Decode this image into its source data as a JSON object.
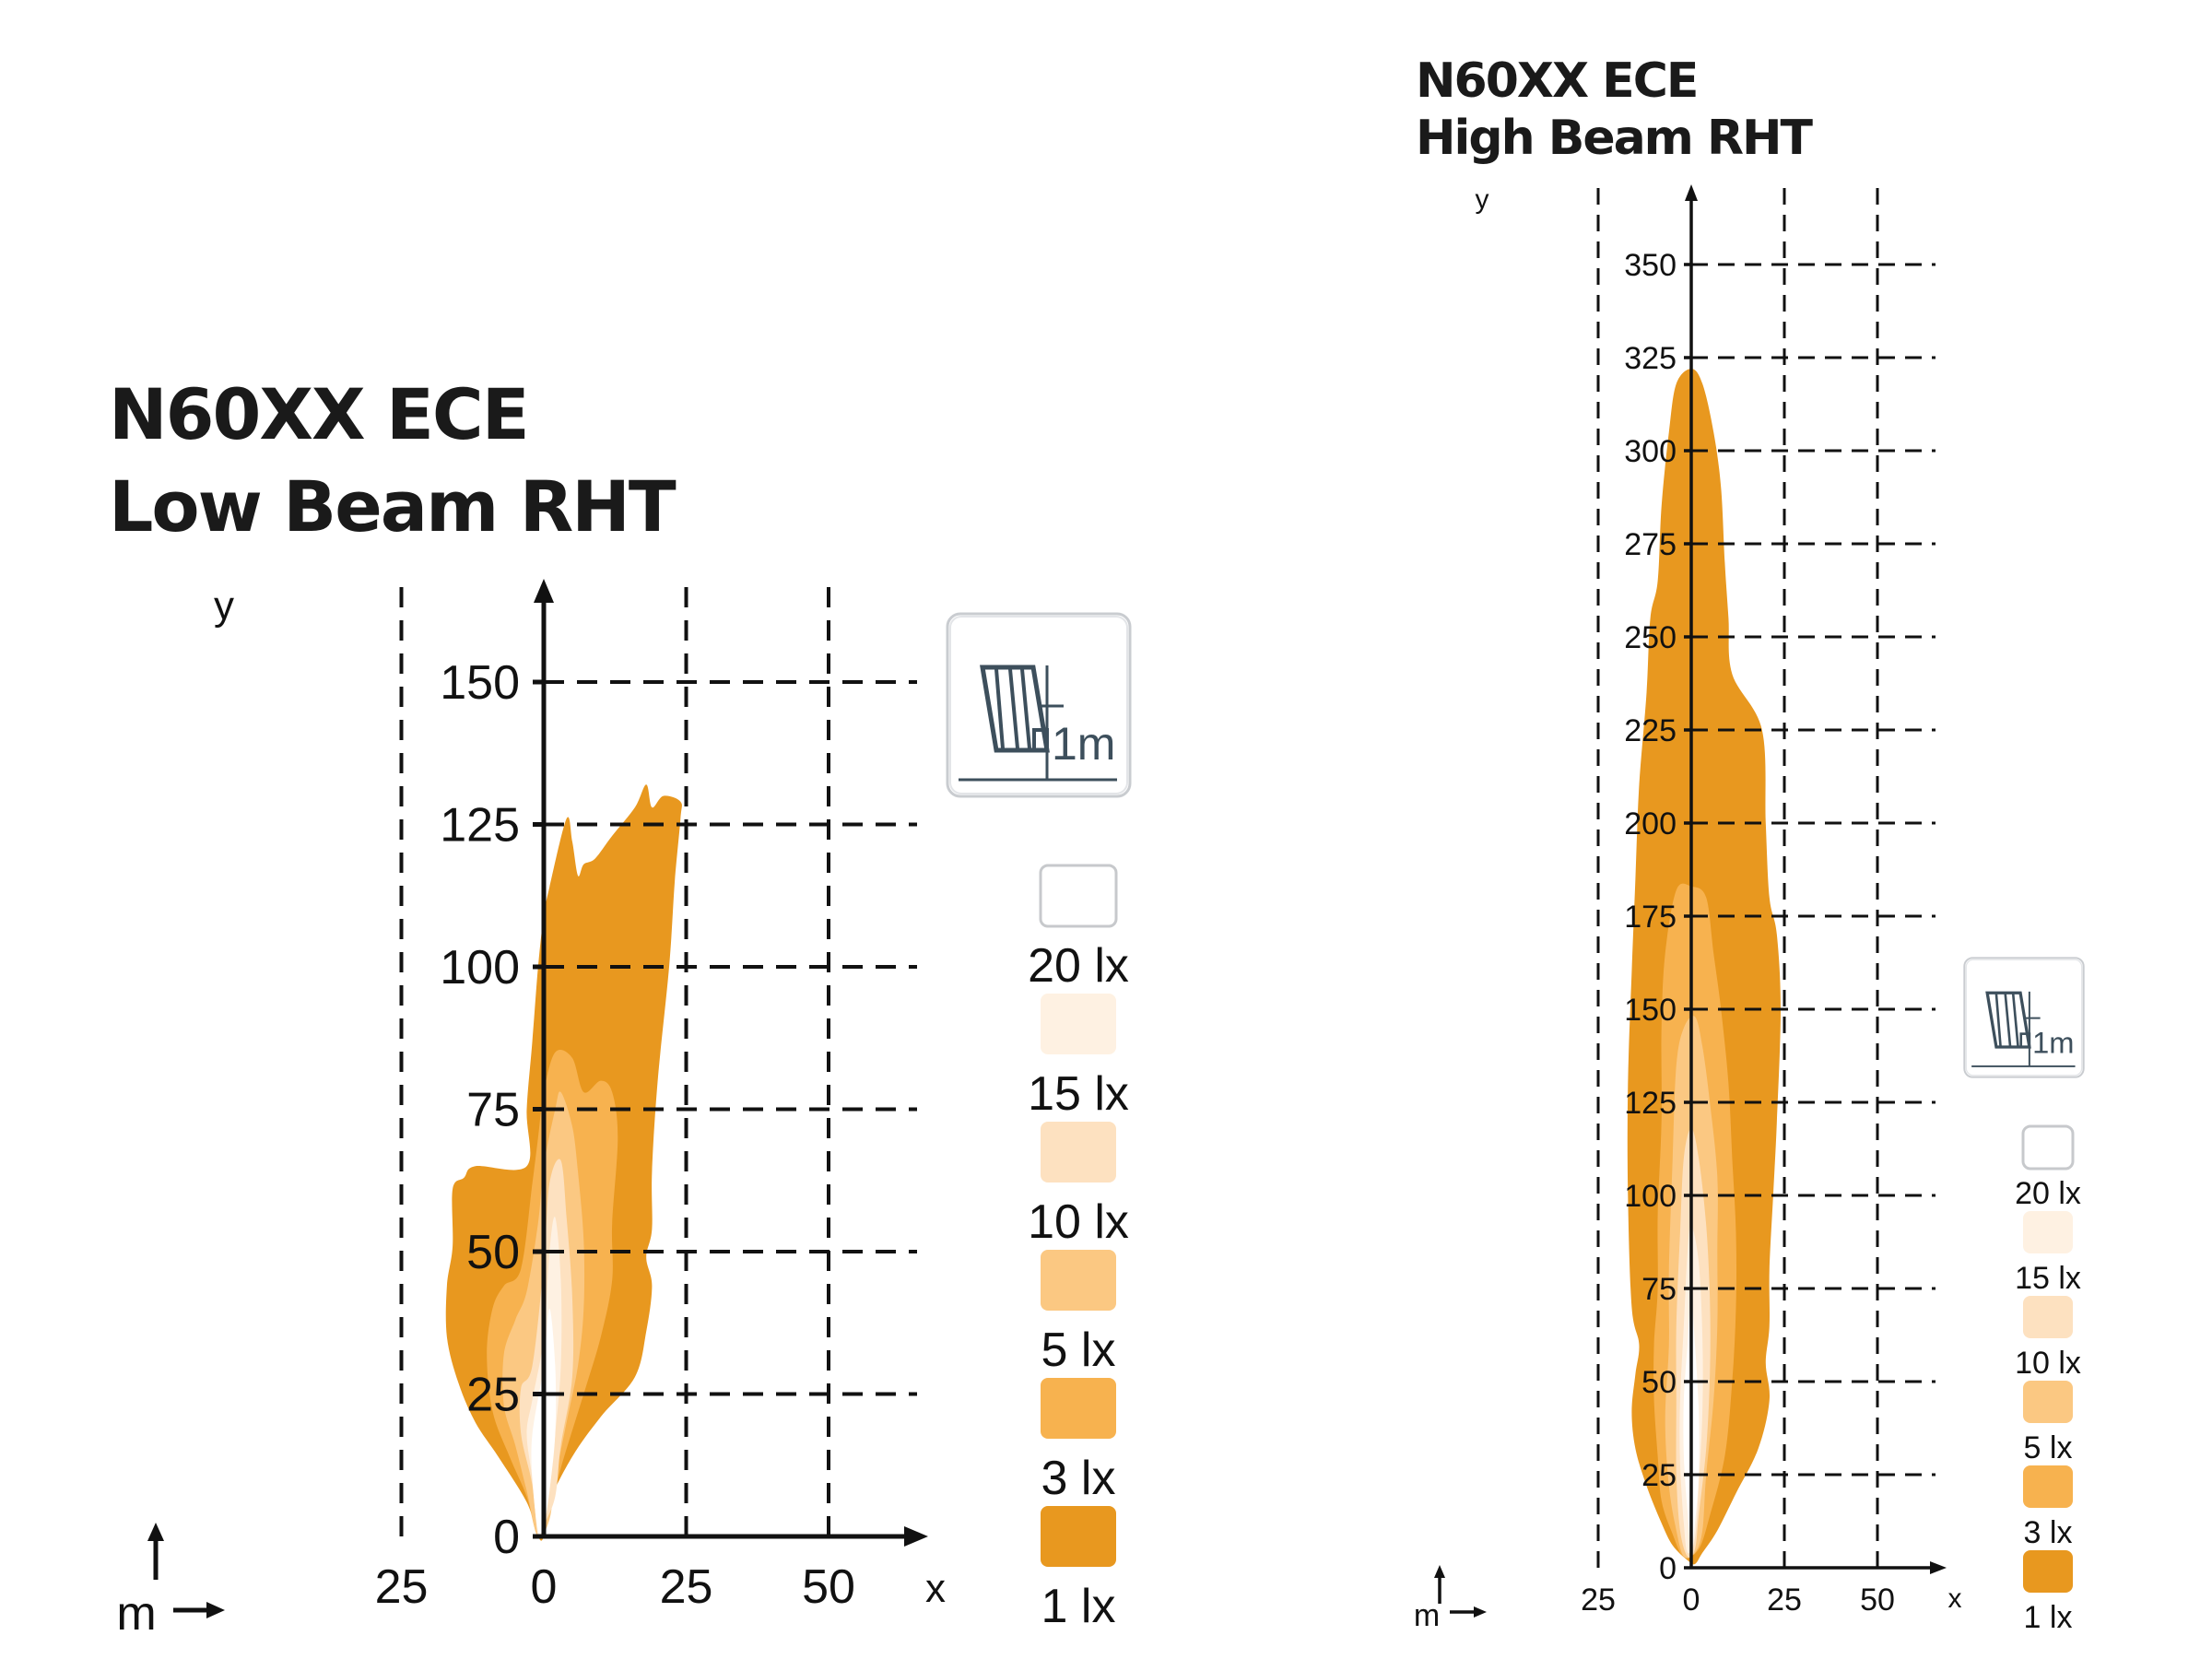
{
  "colors": {
    "lx1": "#e8981f",
    "lx3": "#f7b24f",
    "lx5": "#fbc882",
    "lx10": "#fde1c0",
    "lx15": "#fef1e2",
    "lx20": "#ffffff",
    "grid": "#111111",
    "icon": "#3d4f5c"
  },
  "chart_data": [
    {
      "type": "area",
      "title_line1": "N60XX ECE",
      "title_line2": "Low Beam RHT",
      "xlabel": "x",
      "ylabel": "y",
      "unit_label": "m",
      "mount_height_label": "1m",
      "x_ticks": [
        "25",
        "0",
        "25",
        "50"
      ],
      "y_ticks": [
        "0",
        "25",
        "50",
        "75",
        "100",
        "125",
        "150"
      ],
      "xlim": [
        -50,
        65
      ],
      "ylim": [
        0,
        160
      ],
      "grid": true,
      "legend_position": "right",
      "legend": [
        "20 lx",
        "15 lx",
        "10 lx",
        "5 lx",
        "3 lx",
        "1 lx"
      ],
      "isolux_contours": [
        {
          "level": "1 lx",
          "points": [
            [
              -1,
              0
            ],
            [
              -3,
              6
            ],
            [
              -8,
              14
            ],
            [
              -12,
              20
            ],
            [
              -15,
              27
            ],
            [
              -17,
              35
            ],
            [
              -17,
              44
            ],
            [
              -16,
              51
            ],
            [
              -16,
              61
            ],
            [
              -14,
              63
            ],
            [
              -12,
              65
            ],
            [
              -3,
              65
            ],
            [
              -3,
              75
            ],
            [
              -2,
              87
            ],
            [
              -1,
              100
            ],
            [
              0,
              109
            ],
            [
              1,
              114
            ],
            [
              4,
              126
            ],
            [
              5,
              122
            ],
            [
              6,
              116
            ],
            [
              7,
              118
            ],
            [
              9,
              119
            ],
            [
              12,
              123
            ],
            [
              16,
              128
            ],
            [
              18,
              132
            ],
            [
              19,
              128
            ],
            [
              21,
              130
            ],
            [
              24,
              129
            ],
            [
              24,
              126
            ],
            [
              23,
              115
            ],
            [
              22,
              100
            ],
            [
              20,
              80
            ],
            [
              19,
              64
            ],
            [
              19,
              54
            ],
            [
              18,
              49
            ],
            [
              19,
              44
            ],
            [
              18,
              36
            ],
            [
              16,
              28
            ],
            [
              10,
              21
            ],
            [
              5,
              14
            ],
            [
              1,
              6
            ],
            [
              0,
              0
            ]
          ]
        },
        {
          "level": "3 lx",
          "points": [
            [
              -1,
              0
            ],
            [
              -3,
              7
            ],
            [
              -6,
              14
            ],
            [
              -9,
              22
            ],
            [
              -10,
              32
            ],
            [
              -9,
              40
            ],
            [
              -7,
              44
            ],
            [
              -4,
              47
            ],
            [
              -2,
              62
            ],
            [
              -1,
              70
            ],
            [
              0,
              78
            ],
            [
              2,
              85
            ],
            [
              5,
              84
            ],
            [
              7,
              78
            ],
            [
              10,
              80
            ],
            [
              12,
              78
            ],
            [
              13,
              70
            ],
            [
              12,
              55
            ],
            [
              12,
              45
            ],
            [
              10,
              35
            ],
            [
              7,
              25
            ],
            [
              3,
              12
            ],
            [
              1,
              4
            ]
          ]
        },
        {
          "level": "5 lx",
          "points": [
            [
              -1,
              0
            ],
            [
              -3,
              8
            ],
            [
              -5,
              16
            ],
            [
              -7,
              23
            ],
            [
              -7,
              32
            ],
            [
              -5,
              38
            ],
            [
              -3,
              43
            ],
            [
              -1,
              55
            ],
            [
              0,
              65
            ],
            [
              2,
              75
            ],
            [
              3,
              78
            ],
            [
              5,
              72
            ],
            [
              6,
              64
            ],
            [
              7,
              52
            ],
            [
              7,
              40
            ],
            [
              6,
              30
            ],
            [
              4,
              20
            ],
            [
              2,
              10
            ],
            [
              1,
              3
            ]
          ]
        },
        {
          "level": "10 lx",
          "points": [
            [
              -1,
              0
            ],
            [
              -2,
              9
            ],
            [
              -4,
              18
            ],
            [
              -4,
              26
            ],
            [
              -2,
              30
            ],
            [
              0,
              48
            ],
            [
              1,
              62
            ],
            [
              3,
              66
            ],
            [
              4,
              56
            ],
            [
              5,
              42
            ],
            [
              5,
              28
            ],
            [
              3,
              16
            ],
            [
              2,
              7
            ],
            [
              0,
              2
            ]
          ]
        },
        {
          "level": "15 lx",
          "points": [
            [
              -1,
              0
            ],
            [
              -2,
              10
            ],
            [
              -3,
              18
            ],
            [
              -2,
              24
            ],
            [
              0,
              35
            ],
            [
              1,
              50
            ],
            [
              2,
              56
            ],
            [
              3,
              45
            ],
            [
              3,
              30
            ],
            [
              2,
              18
            ],
            [
              1,
              8
            ],
            [
              0,
              2
            ]
          ]
        },
        {
          "level": "20 lx",
          "points": [
            [
              -1,
              1
            ],
            [
              -2,
              10
            ],
            [
              -2,
              18
            ],
            [
              0,
              30
            ],
            [
              1,
              40
            ],
            [
              2,
              30
            ],
            [
              2,
              18
            ],
            [
              1,
              8
            ],
            [
              0,
              2
            ]
          ]
        }
      ]
    },
    {
      "type": "area",
      "title_line1": "N60XX ECE",
      "title_line2": "High Beam RHT",
      "xlabel": "x",
      "ylabel": "y",
      "unit_label": "m",
      "mount_height_label": "1m",
      "x_ticks": [
        "25",
        "0",
        "25",
        "50"
      ],
      "y_ticks": [
        "0",
        "25",
        "50",
        "75",
        "100",
        "125",
        "150",
        "175",
        "200",
        "225",
        "250",
        "275",
        "300",
        "325",
        "350"
      ],
      "xlim": [
        -50,
        65
      ],
      "ylim": [
        0,
        370
      ],
      "grid": true,
      "legend_position": "right",
      "legend": [
        "20 lx",
        "15 lx",
        "10 lx",
        "5 lx",
        "3 lx",
        "1 lx"
      ],
      "isolux_contours": [
        {
          "level": "1 lx",
          "points": [
            [
              -1,
              2
            ],
            [
              -5,
              6
            ],
            [
              -8,
              12
            ],
            [
              -12,
              22
            ],
            [
              -15,
              32
            ],
            [
              -16,
              42
            ],
            [
              -15,
              52
            ],
            [
              -14,
              60
            ],
            [
              -16,
              70
            ],
            [
              -17,
              100
            ],
            [
              -17,
              130
            ],
            [
              -16,
              160
            ],
            [
              -15,
              185
            ],
            [
              -14,
              210
            ],
            [
              -12,
              235
            ],
            [
              -11,
              255
            ],
            [
              -9,
              265
            ],
            [
              -8,
              285
            ],
            [
              -6,
              305
            ],
            [
              -4,
              318
            ],
            [
              0,
              322
            ],
            [
              3,
              318
            ],
            [
              6,
              305
            ],
            [
              8,
              290
            ],
            [
              9,
              270
            ],
            [
              10,
              255
            ],
            [
              11,
              240
            ],
            [
              19,
              225
            ],
            [
              20,
              200
            ],
            [
              21,
              180
            ],
            [
              23,
              170
            ],
            [
              24,
              150
            ],
            [
              23,
              120
            ],
            [
              22,
              100
            ],
            [
              21,
              80
            ],
            [
              21,
              65
            ],
            [
              20,
              55
            ],
            [
              21,
              45
            ],
            [
              18,
              32
            ],
            [
              12,
              20
            ],
            [
              7,
              10
            ],
            [
              3,
              4
            ],
            [
              1,
              1
            ]
          ]
        },
        {
          "level": "3 lx",
          "points": [
            [
              -2,
              3
            ],
            [
              -5,
              9
            ],
            [
              -8,
              18
            ],
            [
              -9,
              30
            ],
            [
              -10,
              45
            ],
            [
              -10,
              60
            ],
            [
              -9,
              75
            ],
            [
              -9,
              95
            ],
            [
              -8,
              120
            ],
            [
              -8,
              145
            ],
            [
              -7,
              165
            ],
            [
              -4,
              182
            ],
            [
              0,
              183
            ],
            [
              4,
              180
            ],
            [
              6,
              165
            ],
            [
              8,
              150
            ],
            [
              10,
              130
            ],
            [
              11,
              110
            ],
            [
              12,
              90
            ],
            [
              12,
              70
            ],
            [
              11,
              50
            ],
            [
              9,
              30
            ],
            [
              5,
              14
            ],
            [
              2,
              5
            ]
          ]
        },
        {
          "level": "5 lx",
          "points": [
            [
              -2,
              3
            ],
            [
              -4,
              10
            ],
            [
              -6,
              22
            ],
            [
              -7,
              40
            ],
            [
              -6,
              60
            ],
            [
              -6,
              80
            ],
            [
              -5,
              110
            ],
            [
              -4,
              135
            ],
            [
              -2,
              145
            ],
            [
              1,
              148
            ],
            [
              3,
              140
            ],
            [
              5,
              125
            ],
            [
              7,
              105
            ],
            [
              7,
              85
            ],
            [
              7,
              65
            ],
            [
              6,
              45
            ],
            [
              4,
              25
            ],
            [
              3,
              10
            ],
            [
              1,
              4
            ]
          ]
        },
        {
          "level": "10 lx",
          "points": [
            [
              -1,
              3
            ],
            [
              -3,
              10
            ],
            [
              -4,
              25
            ],
            [
              -4,
              45
            ],
            [
              -4,
              65
            ],
            [
              -3,
              90
            ],
            [
              -2,
              110
            ],
            [
              0,
              118
            ],
            [
              2,
              110
            ],
            [
              4,
              92
            ],
            [
              5,
              72
            ],
            [
              5,
              52
            ],
            [
              4,
              32
            ],
            [
              2,
              14
            ],
            [
              1,
              5
            ]
          ]
        },
        {
          "level": "15 lx",
          "points": [
            [
              -1,
              4
            ],
            [
              -2,
              12
            ],
            [
              -3,
              28
            ],
            [
              -3,
              45
            ],
            [
              -2,
              65
            ],
            [
              -1,
              85
            ],
            [
              0,
              92
            ],
            [
              2,
              82
            ],
            [
              3,
              62
            ],
            [
              3,
              42
            ],
            [
              2,
              22
            ],
            [
              1,
              8
            ]
          ]
        },
        {
          "level": "20 lx",
          "points": [
            [
              0,
              5
            ],
            [
              -1,
              15
            ],
            [
              -2,
              30
            ],
            [
              -2,
              45
            ],
            [
              -1,
              60
            ],
            [
              0,
              72
            ],
            [
              1,
              60
            ],
            [
              2,
              42
            ],
            [
              2,
              25
            ],
            [
              1,
              12
            ]
          ]
        }
      ]
    }
  ]
}
